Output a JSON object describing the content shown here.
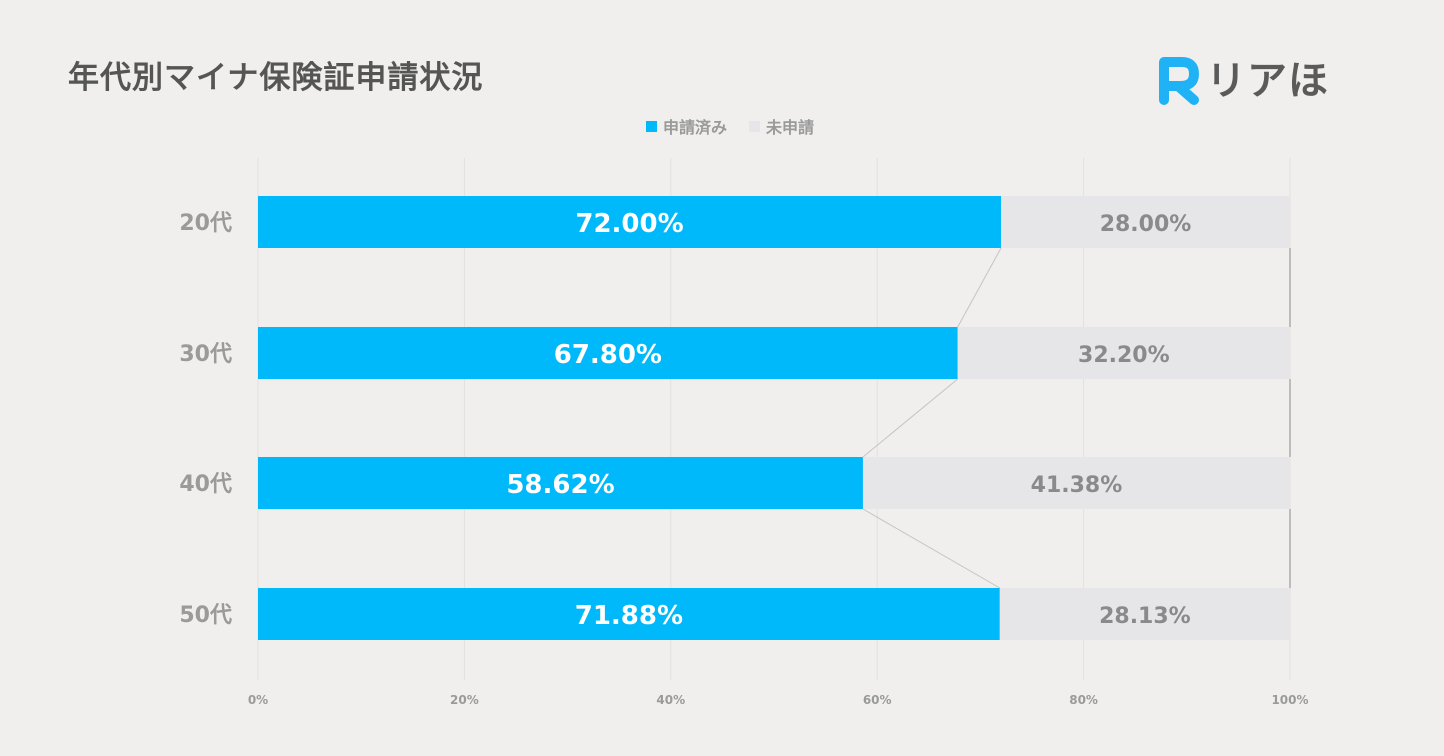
{
  "title": "年代別マイナ保険証申請状況",
  "logo": {
    "text": "リアほ",
    "mark": "R",
    "color": "#1fb3f5"
  },
  "legend": [
    {
      "label": "申請済み",
      "color": "#00b9fb"
    },
    {
      "label": "未申請",
      "color": "#e6e6e8"
    }
  ],
  "chart_data": {
    "type": "bar",
    "orientation": "horizontal",
    "stacked": true,
    "categories": [
      "20代",
      "30代",
      "40代",
      "50代"
    ],
    "series": [
      {
        "name": "申請済み",
        "values": [
          72.0,
          67.8,
          58.62,
          71.88
        ],
        "labels": [
          "72.00%",
          "67.80%",
          "58.62%",
          "71.88%"
        ],
        "color": "#00b9fb"
      },
      {
        "name": "未申請",
        "values": [
          28.0,
          32.2,
          41.38,
          28.13
        ],
        "labels": [
          "28.00%",
          "32.20%",
          "41.38%",
          "28.13%"
        ],
        "color": "#e6e6e8"
      }
    ],
    "xlim": [
      0,
      100
    ],
    "xticks": [
      "0%",
      "20%",
      "40%",
      "60%",
      "80%",
      "100%"
    ],
    "grid": true,
    "series_lines": true,
    "legend_position": "top"
  }
}
